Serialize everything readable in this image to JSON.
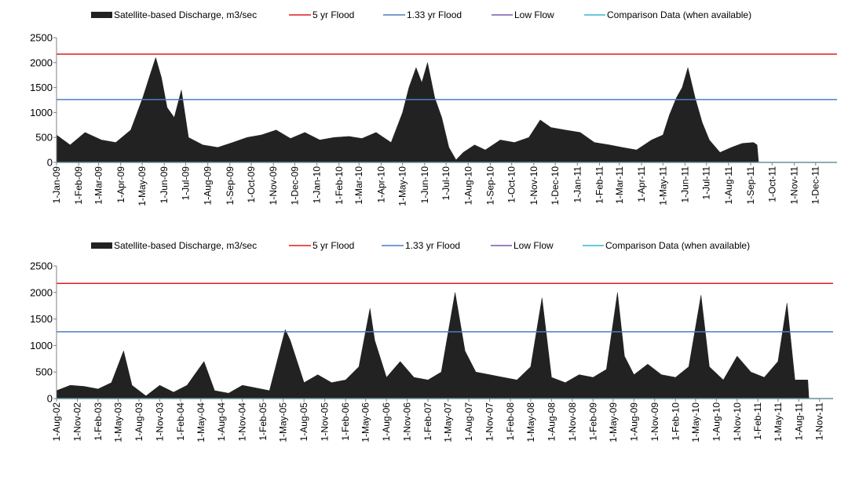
{
  "legend": [
    {
      "label": "Satellite-based Discharge, m3/sec",
      "color": "#222222",
      "kind": "area"
    },
    {
      "label": "5 yr Flood",
      "color": "#e31a1c",
      "kind": "line"
    },
    {
      "label": "1.33 yr Flood",
      "color": "#4a7fbf",
      "kind": "line"
    },
    {
      "label": "Low Flow",
      "color": "#7f55b0",
      "kind": "line"
    },
    {
      "label": "Comparison Data (when available)",
      "color": "#33b5d6",
      "kind": "line"
    }
  ],
  "chart_data": [
    {
      "type": "area",
      "title": "",
      "xlabel": "",
      "ylabel": "",
      "ylim": [
        0,
        2500
      ],
      "yticks": [
        0,
        500,
        1000,
        1500,
        2000,
        2500
      ],
      "grid": false,
      "legend_position": "top",
      "xlim": [
        "2009-01-01",
        "2011-12-31"
      ],
      "xticks": [
        "1-Jan-09",
        "1-Feb-09",
        "1-Mar-09",
        "1-Apr-09",
        "1-May-09",
        "1-Jun-09",
        "1-Jul-09",
        "1-Aug-09",
        "1-Sep-09",
        "1-Oct-09",
        "1-Nov-09",
        "1-Dec-09",
        "1-Jan-10",
        "1-Feb-10",
        "1-Mar-10",
        "1-Apr-10",
        "1-May-10",
        "1-Jun-10",
        "1-Jul-10",
        "1-Aug-10",
        "1-Sep-10",
        "1-Oct-10",
        "1-Nov-10",
        "1-Dec-10",
        "1-Jan-11",
        "1-Feb-11",
        "1-Mar-11",
        "1-Apr-11",
        "1-May-11",
        "1-Jun-11",
        "1-Jul-11",
        "1-Aug-11",
        "1-Sep-11",
        "1-Oct-11",
        "1-Nov-11",
        "1-Dec-11"
      ],
      "reference_lines": [
        {
          "name": "5 yr Flood",
          "value": 2170,
          "color": "#e31a1c"
        },
        {
          "name": "1.33 yr Flood",
          "value": 1260,
          "color": "#4a7fbf"
        }
      ],
      "comparison_baseline": 0,
      "series": [
        {
          "name": "Satellite-based Discharge, m3/sec",
          "color": "#222222",
          "x": [
            "2009-01-01",
            "2009-01-20",
            "2009-02-10",
            "2009-03-05",
            "2009-03-25",
            "2009-04-15",
            "2009-05-02",
            "2009-05-12",
            "2009-05-20",
            "2009-05-28",
            "2009-06-05",
            "2009-06-15",
            "2009-06-25",
            "2009-07-05",
            "2009-07-25",
            "2009-08-15",
            "2009-09-05",
            "2009-09-25",
            "2009-10-15",
            "2009-11-05",
            "2009-11-25",
            "2009-12-15",
            "2010-01-05",
            "2010-01-25",
            "2010-02-15",
            "2010-03-05",
            "2010-03-25",
            "2010-04-15",
            "2010-05-01",
            "2010-05-10",
            "2010-05-20",
            "2010-05-28",
            "2010-06-05",
            "2010-06-15",
            "2010-06-25",
            "2010-07-05",
            "2010-07-15",
            "2010-07-25",
            "2010-08-10",
            "2010-08-25",
            "2010-09-15",
            "2010-10-05",
            "2010-10-25",
            "2010-11-10",
            "2010-11-25",
            "2010-12-15",
            "2011-01-05",
            "2011-01-25",
            "2011-02-15",
            "2011-03-05",
            "2011-03-25",
            "2011-04-15",
            "2011-05-01",
            "2011-05-10",
            "2011-05-20",
            "2011-05-28",
            "2011-06-05",
            "2011-06-15",
            "2011-06-25",
            "2011-07-05",
            "2011-07-20",
            "2011-08-05",
            "2011-08-20",
            "2011-09-05",
            "2011-09-10",
            "2011-09-12",
            "2011-12-31"
          ],
          "values": [
            550,
            350,
            600,
            450,
            400,
            650,
            1300,
            1750,
            2100,
            1700,
            1100,
            900,
            1450,
            500,
            350,
            300,
            400,
            500,
            550,
            650,
            480,
            600,
            450,
            500,
            520,
            480,
            600,
            400,
            1000,
            1500,
            1900,
            1600,
            2000,
            1300,
            900,
            300,
            50,
            200,
            350,
            250,
            450,
            400,
            500,
            850,
            700,
            650,
            600,
            400,
            350,
            300,
            250,
            450,
            550,
            950,
            1300,
            1500,
            1900,
            1300,
            800,
            450,
            200,
            300,
            380,
            400,
            350,
            0,
            0
          ]
        }
      ]
    },
    {
      "type": "area",
      "title": "",
      "xlabel": "",
      "ylabel": "",
      "ylim": [
        0,
        2500
      ],
      "yticks": [
        0,
        500,
        1000,
        1500,
        2000,
        2500
      ],
      "grid": false,
      "legend_position": "top",
      "xlim": [
        "2002-08-01",
        "2011-12-31"
      ],
      "xticks": [
        "1-Aug-02",
        "1-Nov-02",
        "1-Feb-03",
        "1-May-03",
        "1-Aug-03",
        "1-Nov-03",
        "1-Feb-04",
        "1-May-04",
        "1-Aug-04",
        "1-Nov-04",
        "1-Feb-05",
        "1-May-05",
        "1-Aug-05",
        "1-Nov-05",
        "1-Feb-06",
        "1-May-06",
        "1-Aug-06",
        "1-Nov-06",
        "1-Feb-07",
        "1-May-07",
        "1-Aug-07",
        "1-Nov-07",
        "1-Feb-08",
        "1-May-08",
        "1-Aug-08",
        "1-Nov-08",
        "1-Feb-09",
        "1-May-09",
        "1-Aug-09",
        "1-Nov-09",
        "1-Feb-10",
        "1-May-10",
        "1-Aug-10",
        "1-Nov-10",
        "1-Feb-11",
        "1-May-11",
        "1-Aug-11",
        "1-Nov-11"
      ],
      "reference_lines": [
        {
          "name": "5 yr Flood",
          "value": 2170,
          "color": "#e31a1c"
        },
        {
          "name": "1.33 yr Flood",
          "value": 1260,
          "color": "#4a7fbf"
        }
      ],
      "comparison_baseline": 0,
      "series": [
        {
          "name": "Satellite-based Discharge, m3/sec",
          "color": "#222222",
          "x": [
            "2002-08-01",
            "2002-10-01",
            "2002-12-01",
            "2003-02-01",
            "2003-04-01",
            "2003-05-25",
            "2003-07-01",
            "2003-09-01",
            "2003-11-01",
            "2004-01-01",
            "2004-03-01",
            "2004-05-15",
            "2004-07-01",
            "2004-09-01",
            "2004-11-01",
            "2005-01-01",
            "2005-03-01",
            "2005-05-10",
            "2005-06-01",
            "2005-08-01",
            "2005-10-01",
            "2005-12-01",
            "2006-02-01",
            "2006-04-01",
            "2006-05-20",
            "2006-06-10",
            "2006-08-01",
            "2006-10-01",
            "2006-12-01",
            "2007-02-01",
            "2007-04-01",
            "2007-06-01",
            "2007-07-15",
            "2007-09-01",
            "2007-11-01",
            "2008-01-01",
            "2008-03-01",
            "2008-05-01",
            "2008-06-20",
            "2008-08-01",
            "2008-10-01",
            "2008-12-01",
            "2009-02-01",
            "2009-04-01",
            "2009-05-20",
            "2009-06-20",
            "2009-08-01",
            "2009-10-01",
            "2009-12-01",
            "2010-02-01",
            "2010-04-01",
            "2010-05-25",
            "2010-07-01",
            "2010-09-01",
            "2010-11-01",
            "2011-01-01",
            "2011-03-01",
            "2011-05-01",
            "2011-06-10",
            "2011-07-15",
            "2011-09-10",
            "2011-09-15",
            "2011-12-31"
          ],
          "values": [
            150,
            250,
            230,
            180,
            300,
            900,
            250,
            50,
            250,
            120,
            250,
            700,
            150,
            100,
            250,
            200,
            150,
            1300,
            1100,
            300,
            450,
            300,
            350,
            600,
            1700,
            1100,
            400,
            700,
            400,
            350,
            500,
            2000,
            900,
            500,
            450,
            400,
            350,
            600,
            1900,
            400,
            300,
            450,
            400,
            550,
            2000,
            800,
            450,
            650,
            450,
            400,
            600,
            1950,
            600,
            350,
            800,
            500,
            400,
            700,
            1800,
            350,
            350,
            0,
            0
          ]
        }
      ]
    }
  ]
}
